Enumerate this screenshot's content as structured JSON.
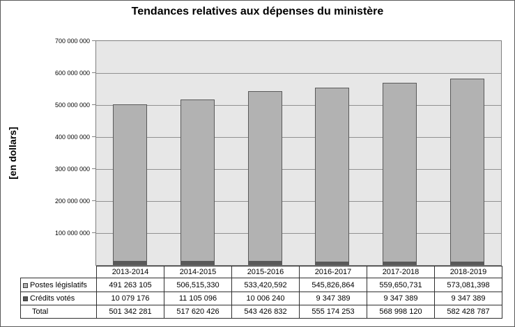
{
  "chart_data": {
    "type": "bar",
    "stacked": true,
    "title": "Tendances relatives aux dépenses du ministère",
    "ylabel": "[en dollars]",
    "xlabel": "",
    "categories": [
      "2013-2014",
      "2014-2015",
      "2015-2016",
      "2016-2017",
      "2017-2018",
      "2018-2019"
    ],
    "series": [
      {
        "name": "Postes législatifs",
        "stack_position": "top",
        "color_key": "bar_fill",
        "values": [
          491263105,
          506515330,
          533420592,
          545826864,
          559650731,
          573081398
        ],
        "display": [
          "491 263 105",
          "506,515,330",
          "533,420,592",
          "545,826,864",
          "559,650,731",
          "573,081,398"
        ]
      },
      {
        "name": "Crédits votés",
        "stack_position": "bottom",
        "color_key": "credits_fill",
        "values": [
          10079176,
          11105096,
          10006240,
          9347389,
          9347389,
          9347389
        ],
        "display": [
          "10 079 176",
          "11 105 096",
          "10 006 240",
          "9 347 389",
          "9 347 389",
          "9 347 389"
        ]
      }
    ],
    "total_row": {
      "name": "Total",
      "values": [
        501342281,
        517620426,
        543426832,
        555174253,
        568998120,
        582428787
      ],
      "display": [
        "501 342 281",
        "517 620 426",
        "543 426 832",
        "555 174 253",
        "568 998 120",
        "582 428 787"
      ]
    },
    "ylim": [
      0,
      700000000
    ],
    "yticks": [
      {
        "value": 100000000,
        "label": "100 000 000"
      },
      {
        "value": 200000000,
        "label": "200 000 000"
      },
      {
        "value": 300000000,
        "label": "300 000 000"
      },
      {
        "value": 400000000,
        "label": "400 000 000"
      },
      {
        "value": 500000000,
        "label": "500 000 000"
      },
      {
        "value": 600000000,
        "label": "600 000 000"
      },
      {
        "value": 700000000,
        "label": "700 000 000"
      }
    ],
    "grid": "horizontal",
    "legend_position": "data-table-left-column"
  },
  "colors": {
    "background": "#ffffff",
    "frame_border": "#595959",
    "plot_background": "#e7e7e7",
    "plot_border": "#7f7f7f",
    "gridline": "#909090",
    "bar_fill": "#b2b2b2",
    "bar_border": "#595959",
    "credits_fill": "#595959",
    "table_border": "#2e2e2e",
    "text": "#000000"
  }
}
